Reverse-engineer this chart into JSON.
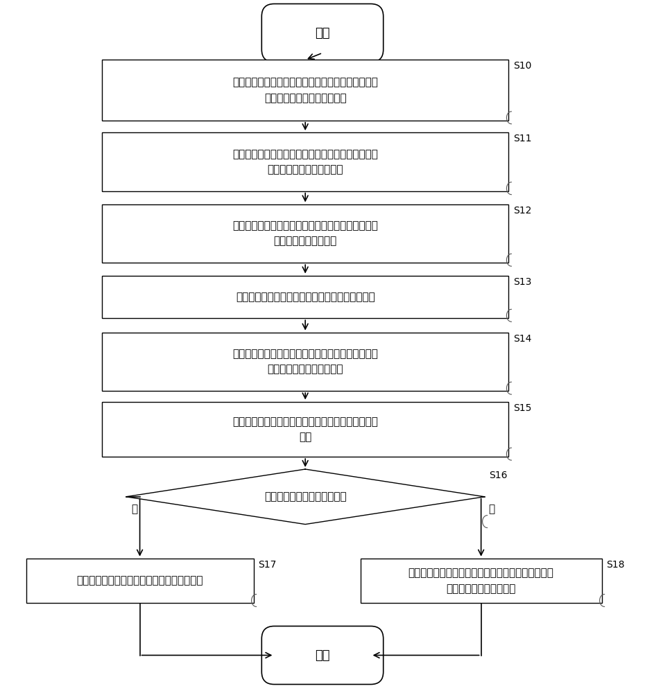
{
  "bg": "#ffffff",
  "title_color": "#000000",
  "start_text": "开始",
  "end_text": "结束",
  "yes_text": "是",
  "no_text": "否",
  "steps": [
    {
      "id": "S10",
      "text": "采集变速箱的实际速比和目标速比、发动机的实际输\n出扭矩以及发动机的实际转速"
    },
    {
      "id": "S11",
      "text": "计算实际速比与实际输出扭矩的乘积，得到变速箱的\n输出轴端的实际需求扭矩值"
    },
    {
      "id": "S12",
      "text": "计算实际转速和目标速比的乘积与实际速比的比值，\n得到发动机的预期转速"
    },
    {
      "id": "S13",
      "text": "利用发动机的预期转速计算发动机的预期输出扭矩"
    },
    {
      "id": "S14",
      "text": "计算预期输出扭矩与目标速比的乘积，得到变速箱的\n输出轴端的预期需求扭矩值"
    },
    {
      "id": "S15",
      "text": "对实际需求扭矩值和预期需求扭矩值作差，得到扭矩\n差值"
    }
  ],
  "diamond": {
    "id": "S16",
    "text": "判断扭矩差值是否超出预设值"
  },
  "left_box": {
    "id": "S17",
    "text": "控制变速箱的实际速比的变化率降低至目标值"
  },
  "right_box": {
    "id": "S18",
    "text": "控制变速箱以当前实际速比输出，以使发动机以实际\n转速和实际输出扭矩输出"
  }
}
